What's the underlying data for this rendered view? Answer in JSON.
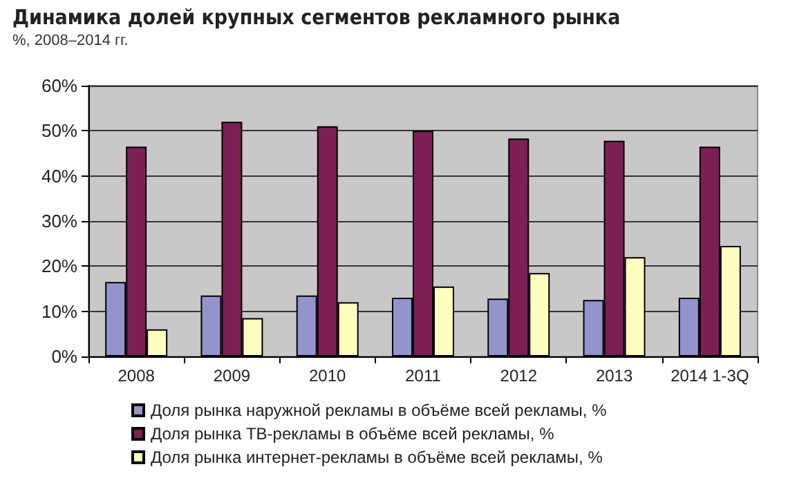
{
  "chart_data": {
    "type": "bar",
    "title": "Динамика долей крупных сегментов рекламного рынка",
    "subtitle": "%, 2008–2014 гг.",
    "categories": [
      "2008",
      "2009",
      "2010",
      "2011",
      "2012",
      "2013",
      "2014 1-3Q"
    ],
    "series": [
      {
        "name": "Доля рынка наружной рекламы в объёме всей рекламы, %",
        "color": "#9494cc",
        "values": [
          16.5,
          13.5,
          13.5,
          13,
          12.8,
          12.5,
          13
        ]
      },
      {
        "name": "Доля рынка ТВ-рекламы в объёме всей рекламы, %",
        "color": "#7c1f55",
        "values": [
          46.5,
          52,
          51,
          50,
          48.3,
          47.8,
          46.5
        ]
      },
      {
        "name": "Доля рынка интернет-рекламы в объёме всей рекламы, %",
        "color": "#ffffc0",
        "values": [
          6,
          8.5,
          12,
          15.5,
          18.5,
          22,
          24.5
        ]
      }
    ],
    "ylim": [
      0,
      60
    ],
    "yticks": [
      {
        "value": 0,
        "label": "0%"
      },
      {
        "value": 10,
        "label": "10%"
      },
      {
        "value": 20,
        "label": "20%"
      },
      {
        "value": 30,
        "label": "30%"
      },
      {
        "value": 40,
        "label": "40%"
      },
      {
        "value": 50,
        "label": "50%"
      },
      {
        "value": 60,
        "label": "60%"
      }
    ],
    "grid": "y",
    "legend": "bottom"
  }
}
